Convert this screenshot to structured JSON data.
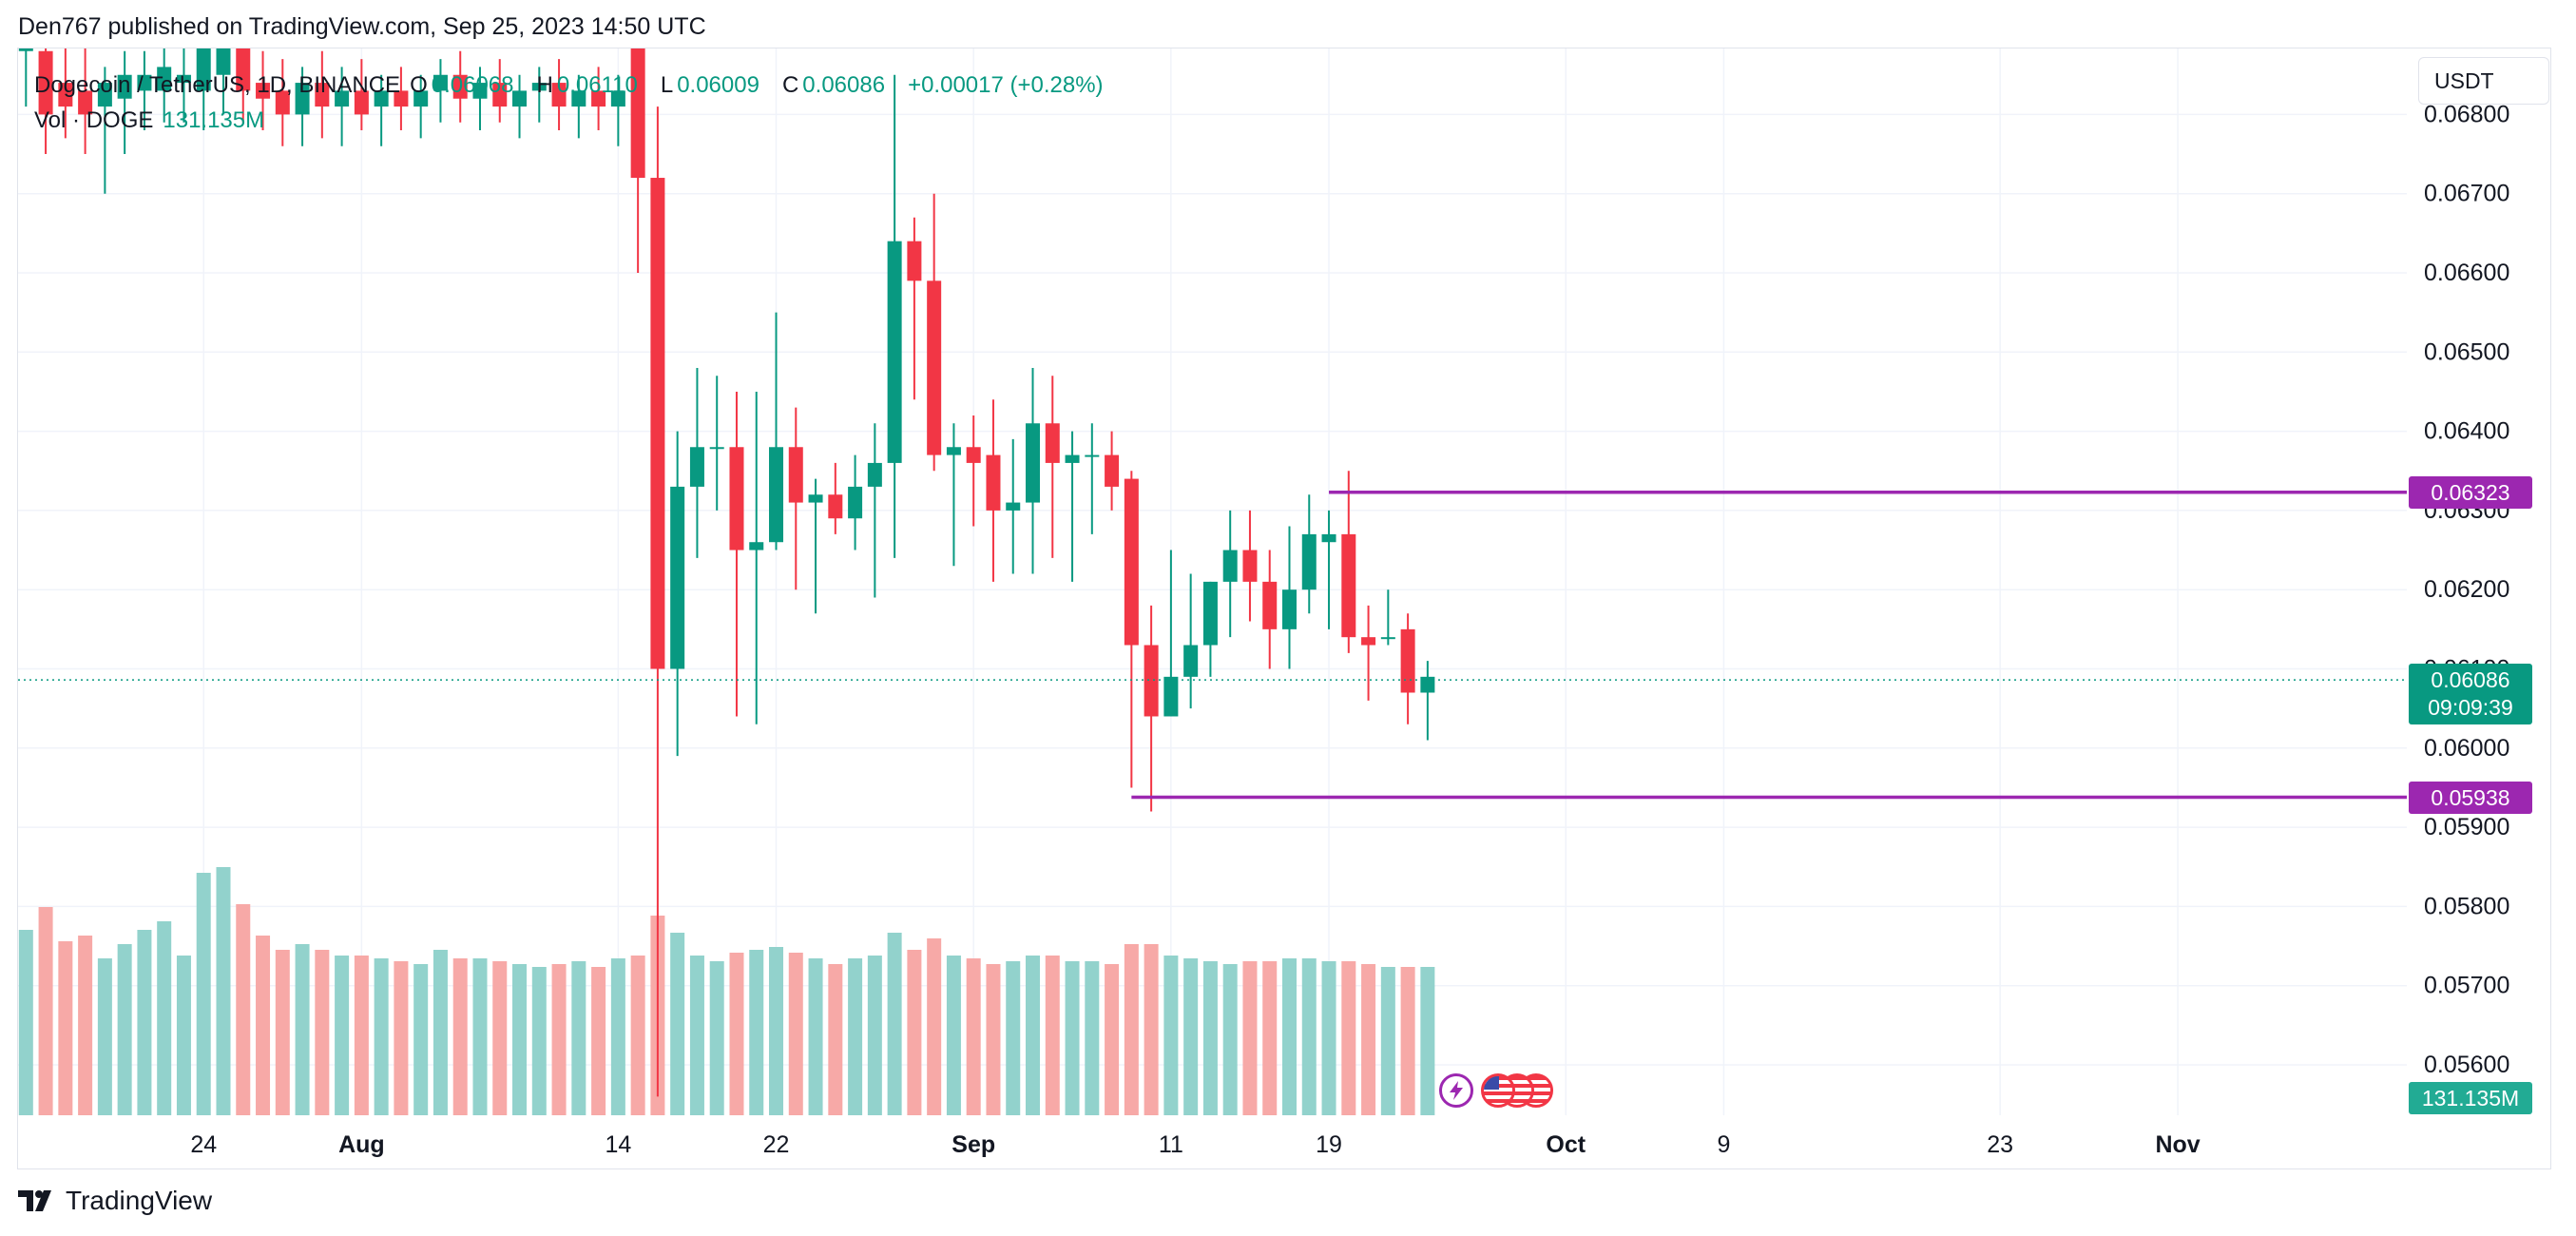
{
  "header": {
    "published": "Den767 published on TradingView.com, Sep 25, 2023 14:50 UTC"
  },
  "legend": {
    "symbol": "Dogecoin / TetherUS, 1D, BINANCE",
    "open_label": "O",
    "open": "0.06068",
    "high_label": "H",
    "high": "0.06110",
    "low_label": "L",
    "low": "0.06009",
    "close_label": "C",
    "close": "0.06086",
    "change": "+0.00017 (+0.28%)",
    "vol_label": "Vol · DOGE",
    "vol_value": "131.135M"
  },
  "currency": "USDT",
  "footer": {
    "brand": "TradingView"
  },
  "tags": {
    "resistance": "0.06323",
    "current_price": "0.06086",
    "countdown": "09:09:39",
    "support": "0.05938",
    "volume": "131.135M"
  },
  "colors": {
    "up": "#089981",
    "down": "#f23645",
    "up_vol": "#92d2cc",
    "down_vol": "#f7a9a7",
    "level_line": "#9c27b0",
    "grid": "#f0f3fa"
  },
  "icons": [
    "tradingview-logo-icon",
    "lightning-event-icon",
    "us-flag-event-icon"
  ],
  "chart_data": {
    "type": "candlestick",
    "symbol": "Dogecoin / TetherUS, 1D, BINANCE",
    "y_ticks": [
      "0.05600",
      "0.05700",
      "0.05800",
      "0.05900",
      "0.06000",
      "0.06100",
      "0.06200",
      "0.06300",
      "0.06400",
      "0.06500",
      "0.06600",
      "0.06700",
      "0.06800"
    ],
    "ylim": [
      0.0556,
      0.0685
    ],
    "x_ticks": [
      {
        "label": "24",
        "day": 24
      },
      {
        "label": "Aug",
        "day": 32
      },
      {
        "label": "14",
        "day": 45
      },
      {
        "label": "22",
        "day": 53
      },
      {
        "label": "Sep",
        "day": 63
      },
      {
        "label": "11",
        "day": 73
      },
      {
        "label": "19",
        "day": 81
      },
      {
        "label": "Oct",
        "day": 93
      },
      {
        "label": "9",
        "day": 101
      },
      {
        "label": "23",
        "day": 115
      },
      {
        "label": "Nov",
        "day": 124
      }
    ],
    "xlim": [
      14.6,
      135.6
    ],
    "candles": [
      {
        "d": 15,
        "o": 0.0688,
        "h": 0.0695,
        "l": 0.0681,
        "c": 0.069,
        "v": 65
      },
      {
        "d": 16,
        "o": 0.0688,
        "h": 0.0693,
        "l": 0.0675,
        "c": 0.068,
        "v": 73
      },
      {
        "d": 17,
        "o": 0.0684,
        "h": 0.069,
        "l": 0.0677,
        "c": 0.0681,
        "v": 61
      },
      {
        "d": 18,
        "o": 0.0683,
        "h": 0.0689,
        "l": 0.0675,
        "c": 0.068,
        "v": 63
      },
      {
        "d": 19,
        "o": 0.0681,
        "h": 0.0686,
        "l": 0.067,
        "c": 0.0684,
        "v": 55
      },
      {
        "d": 20,
        "o": 0.0682,
        "h": 0.0688,
        "l": 0.0675,
        "c": 0.0685,
        "v": 60
      },
      {
        "d": 21,
        "o": 0.0683,
        "h": 0.0688,
        "l": 0.0678,
        "c": 0.0685,
        "v": 65
      },
      {
        "d": 22,
        "o": 0.0683,
        "h": 0.069,
        "l": 0.0679,
        "c": 0.0686,
        "v": 68
      },
      {
        "d": 23,
        "o": 0.0684,
        "h": 0.0689,
        "l": 0.0679,
        "c": 0.0685,
        "v": 56
      },
      {
        "d": 24,
        "o": 0.0683,
        "h": 0.0692,
        "l": 0.0678,
        "c": 0.069,
        "v": 85
      },
      {
        "d": 25,
        "o": 0.0685,
        "h": 0.0694,
        "l": 0.068,
        "c": 0.0691,
        "v": 87
      },
      {
        "d": 26,
        "o": 0.069,
        "h": 0.0693,
        "l": 0.0679,
        "c": 0.0683,
        "v": 74
      },
      {
        "d": 27,
        "o": 0.0684,
        "h": 0.0688,
        "l": 0.0678,
        "c": 0.0682,
        "v": 63
      },
      {
        "d": 28,
        "o": 0.0683,
        "h": 0.0687,
        "l": 0.0676,
        "c": 0.068,
        "v": 58
      },
      {
        "d": 29,
        "o": 0.068,
        "h": 0.0686,
        "l": 0.0676,
        "c": 0.0684,
        "v": 60
      },
      {
        "d": 30,
        "o": 0.0684,
        "h": 0.0688,
        "l": 0.0677,
        "c": 0.0681,
        "v": 58
      },
      {
        "d": 31,
        "o": 0.0681,
        "h": 0.0686,
        "l": 0.0676,
        "c": 0.0683,
        "v": 56
      },
      {
        "d": 32,
        "o": 0.0683,
        "h": 0.0687,
        "l": 0.0678,
        "c": 0.068,
        "v": 56
      },
      {
        "d": 33,
        "o": 0.0681,
        "h": 0.0685,
        "l": 0.0676,
        "c": 0.0683,
        "v": 55
      },
      {
        "d": 34,
        "o": 0.0683,
        "h": 0.0686,
        "l": 0.0678,
        "c": 0.0681,
        "v": 54
      },
      {
        "d": 35,
        "o": 0.0681,
        "h": 0.0685,
        "l": 0.0677,
        "c": 0.0683,
        "v": 53
      },
      {
        "d": 36,
        "o": 0.0683,
        "h": 0.0687,
        "l": 0.0679,
        "c": 0.0685,
        "v": 58
      },
      {
        "d": 37,
        "o": 0.0685,
        "h": 0.0688,
        "l": 0.0679,
        "c": 0.0682,
        "v": 55
      },
      {
        "d": 38,
        "o": 0.0682,
        "h": 0.0686,
        "l": 0.0678,
        "c": 0.0684,
        "v": 55
      },
      {
        "d": 39,
        "o": 0.0684,
        "h": 0.0687,
        "l": 0.0679,
        "c": 0.0681,
        "v": 54
      },
      {
        "d": 40,
        "o": 0.0681,
        "h": 0.0685,
        "l": 0.0677,
        "c": 0.0683,
        "v": 53
      },
      {
        "d": 41,
        "o": 0.0683,
        "h": 0.0686,
        "l": 0.0679,
        "c": 0.0684,
        "v": 52
      },
      {
        "d": 42,
        "o": 0.0684,
        "h": 0.0687,
        "l": 0.0678,
        "c": 0.0681,
        "v": 53
      },
      {
        "d": 43,
        "o": 0.0681,
        "h": 0.0685,
        "l": 0.0677,
        "c": 0.0683,
        "v": 54
      },
      {
        "d": 44,
        "o": 0.0683,
        "h": 0.0686,
        "l": 0.0678,
        "c": 0.0681,
        "v": 52
      },
      {
        "d": 45,
        "o": 0.0681,
        "h": 0.0685,
        "l": 0.0676,
        "c": 0.0683,
        "v": 55
      },
      {
        "d": 46,
        "o": 0.069,
        "h": 0.0698,
        "l": 0.066,
        "c": 0.0672,
        "v": 56
      },
      {
        "d": 47,
        "o": 0.0672,
        "h": 0.0681,
        "l": 0.0556,
        "c": 0.061,
        "v": 70
      },
      {
        "d": 48,
        "o": 0.061,
        "h": 0.064,
        "l": 0.0599,
        "c": 0.0633,
        "v": 64
      },
      {
        "d": 49,
        "o": 0.0633,
        "h": 0.0648,
        "l": 0.0624,
        "c": 0.0638,
        "v": 56
      },
      {
        "d": 50,
        "o": 0.0638,
        "h": 0.0647,
        "l": 0.063,
        "c": 0.0638,
        "v": 54
      },
      {
        "d": 51,
        "o": 0.0638,
        "h": 0.0645,
        "l": 0.0604,
        "c": 0.0625,
        "v": 57
      },
      {
        "d": 52,
        "o": 0.0625,
        "h": 0.0645,
        "l": 0.0603,
        "c": 0.0626,
        "v": 58
      },
      {
        "d": 53,
        "o": 0.0626,
        "h": 0.0655,
        "l": 0.0625,
        "c": 0.0638,
        "v": 59
      },
      {
        "d": 54,
        "o": 0.0638,
        "h": 0.0643,
        "l": 0.062,
        "c": 0.0631,
        "v": 57
      },
      {
        "d": 55,
        "o": 0.0631,
        "h": 0.0634,
        "l": 0.0617,
        "c": 0.0632,
        "v": 55
      },
      {
        "d": 56,
        "o": 0.0632,
        "h": 0.0636,
        "l": 0.0627,
        "c": 0.0629,
        "v": 53
      },
      {
        "d": 57,
        "o": 0.0629,
        "h": 0.0637,
        "l": 0.0625,
        "c": 0.0633,
        "v": 55
      },
      {
        "d": 58,
        "o": 0.0633,
        "h": 0.0641,
        "l": 0.0619,
        "c": 0.0636,
        "v": 56
      },
      {
        "d": 59,
        "o": 0.0636,
        "h": 0.0685,
        "l": 0.0624,
        "c": 0.0664,
        "v": 64
      },
      {
        "d": 60,
        "o": 0.0664,
        "h": 0.0667,
        "l": 0.0644,
        "c": 0.0659,
        "v": 58
      },
      {
        "d": 61,
        "o": 0.0659,
        "h": 0.067,
        "l": 0.0635,
        "c": 0.0637,
        "v": 62
      },
      {
        "d": 62,
        "o": 0.0637,
        "h": 0.0641,
        "l": 0.0623,
        "c": 0.0638,
        "v": 56
      },
      {
        "d": 63,
        "o": 0.0638,
        "h": 0.0642,
        "l": 0.0628,
        "c": 0.0636,
        "v": 55
      },
      {
        "d": 64,
        "o": 0.0637,
        "h": 0.0644,
        "l": 0.0621,
        "c": 0.063,
        "v": 53
      },
      {
        "d": 65,
        "o": 0.063,
        "h": 0.0639,
        "l": 0.0622,
        "c": 0.0631,
        "v": 54
      },
      {
        "d": 66,
        "o": 0.0631,
        "h": 0.0648,
        "l": 0.0622,
        "c": 0.0641,
        "v": 56
      },
      {
        "d": 67,
        "o": 0.0641,
        "h": 0.0647,
        "l": 0.0624,
        "c": 0.0636,
        "v": 56
      },
      {
        "d": 68,
        "o": 0.0636,
        "h": 0.064,
        "l": 0.0621,
        "c": 0.0637,
        "v": 54
      },
      {
        "d": 69,
        "o": 0.0637,
        "h": 0.0641,
        "l": 0.0627,
        "c": 0.0637,
        "v": 54
      },
      {
        "d": 70,
        "o": 0.0637,
        "h": 0.064,
        "l": 0.063,
        "c": 0.0633,
        "v": 53
      },
      {
        "d": 71,
        "o": 0.0634,
        "h": 0.0635,
        "l": 0.0595,
        "c": 0.0613,
        "v": 60
      },
      {
        "d": 72,
        "o": 0.0613,
        "h": 0.0618,
        "l": 0.0592,
        "c": 0.0604,
        "v": 60
      },
      {
        "d": 73,
        "o": 0.0604,
        "h": 0.0625,
        "l": 0.0604,
        "c": 0.0609,
        "v": 56
      },
      {
        "d": 74,
        "o": 0.0609,
        "h": 0.0622,
        "l": 0.0605,
        "c": 0.0613,
        "v": 55
      },
      {
        "d": 75,
        "o": 0.0613,
        "h": 0.0621,
        "l": 0.0609,
        "c": 0.0621,
        "v": 54
      },
      {
        "d": 76,
        "o": 0.0621,
        "h": 0.063,
        "l": 0.0614,
        "c": 0.0625,
        "v": 53
      },
      {
        "d": 77,
        "o": 0.0625,
        "h": 0.063,
        "l": 0.0616,
        "c": 0.0621,
        "v": 54
      },
      {
        "d": 78,
        "o": 0.0621,
        "h": 0.0625,
        "l": 0.061,
        "c": 0.0615,
        "v": 54
      },
      {
        "d": 79,
        "o": 0.0615,
        "h": 0.0628,
        "l": 0.061,
        "c": 0.062,
        "v": 55
      },
      {
        "d": 80,
        "o": 0.062,
        "h": 0.0632,
        "l": 0.0617,
        "c": 0.0627,
        "v": 55
      },
      {
        "d": 81,
        "o": 0.0626,
        "h": 0.063,
        "l": 0.0615,
        "c": 0.0627,
        "v": 54
      },
      {
        "d": 82,
        "o": 0.0627,
        "h": 0.0635,
        "l": 0.0612,
        "c": 0.0614,
        "v": 54
      },
      {
        "d": 83,
        "o": 0.0614,
        "h": 0.0618,
        "l": 0.0606,
        "c": 0.0613,
        "v": 53
      },
      {
        "d": 84,
        "o": 0.0614,
        "h": 0.062,
        "l": 0.0613,
        "c": 0.0614,
        "v": 52
      },
      {
        "d": 85,
        "o": 0.0615,
        "h": 0.0617,
        "l": 0.0603,
        "c": 0.0607,
        "v": 52
      },
      {
        "d": 86,
        "o": 0.0607,
        "h": 0.0611,
        "l": 0.0601,
        "c": 0.0609,
        "v": 52
      }
    ],
    "levels": [
      {
        "price": 0.06323,
        "from_day": 81,
        "label": "0.06323"
      },
      {
        "price": 0.05938,
        "from_day": 71,
        "label": "0.05938"
      }
    ],
    "last_price": 0.06086,
    "volume_scale_max": 100
  }
}
